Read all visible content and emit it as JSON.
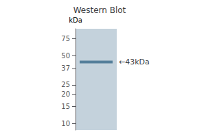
{
  "chart_data": {
    "type": "blot",
    "title": "Western Blot",
    "ylabel": "kDa",
    "values": [
      43
    ],
    "value_labels": [
      "←43kDa"
    ],
    "data_labels": true,
    "color": "#3a6a8a",
    "log": "y",
    "ylim": [
      8.5,
      95
    ],
    "yticks": [
      75,
      50,
      37,
      25,
      20,
      15,
      10
    ],
    "grid": false
  }
}
